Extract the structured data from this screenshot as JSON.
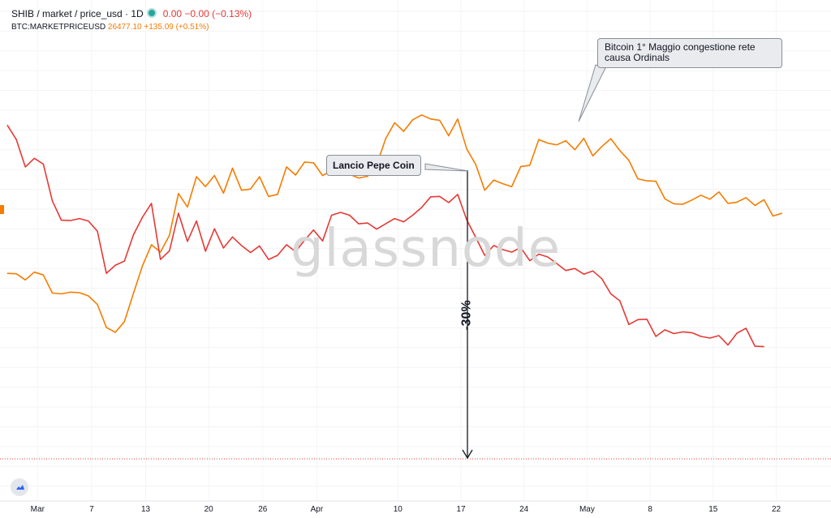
{
  "legend": {
    "symbol": "SHIB / market / price_usd · 1D",
    "symbol_values": "0.00 −0.00 (−0.13%)",
    "btc_symbol": "BTC:MARKETPRICEUSD",
    "btc_values": "26477.10 +135.09 (+0.51%)"
  },
  "annotations": {
    "pepe": "Lancio Pepe Coin",
    "btc": "Bitcoin 1° Maggio congestione rete causa Ordinals",
    "drop": "-30%"
  },
  "watermark": "glassnode",
  "colors": {
    "shib": "#e53935",
    "btc": "#f57c00",
    "axis_text": "#131722"
  },
  "icons": {
    "logo": "tradingview-cloud-icon"
  },
  "chart_data": {
    "type": "line",
    "x_tick_labels": [
      "Mar",
      "7",
      "13",
      "20",
      "26",
      "Apr",
      "10",
      "17",
      "24",
      "May",
      "8",
      "15",
      "22"
    ],
    "series": [
      {
        "name": "SHIB / market / price_usd",
        "values": [
          91.8,
          88.3,
          81.6,
          83.7,
          82.3,
          73.3,
          68.6,
          68.5,
          69.0,
          68.4,
          65.9,
          55.6,
          57.6,
          58.6,
          65.0,
          69.3,
          72.7,
          59.0,
          61.1,
          70.3,
          63.4,
          68.4,
          61.0,
          66.5,
          61.8,
          64.5,
          62.4,
          60.7,
          62.3,
          59.0,
          60.0,
          62.6,
          60.9,
          63.7,
          66.2,
          63.5,
          69.8,
          70.5,
          69.8,
          67.7,
          67.9,
          66.4,
          67.7,
          69.0,
          68.2,
          69.8,
          71.7,
          74.3,
          74.4,
          72.9,
          74.9,
          68.7,
          64.4,
          60.0,
          62.4,
          61.4,
          60.8,
          61.9,
          58.7,
          60.3,
          59.6,
          58.0,
          56.3,
          56.8,
          55.4,
          56.2,
          54.3,
          50.6,
          48.9,
          43.1,
          44.3,
          44.4,
          40.2,
          41.8,
          40.9,
          41.3,
          41.1,
          40.2,
          39.8,
          40.4,
          38.1,
          41.0,
          42.2,
          37.8,
          37.7
        ]
      },
      {
        "name": "BTC:MARKETPRICEUSD",
        "values": [
          55.6,
          55.5,
          54.0,
          55.9,
          55.2,
          50.8,
          50.6,
          51.0,
          50.9,
          50.1,
          48.0,
          42.4,
          41.2,
          43.8,
          50.7,
          57.4,
          62.6,
          60.8,
          64.9,
          75.1,
          71.8,
          79.2,
          76.8,
          79.5,
          75.2,
          81.3,
          75.9,
          76.2,
          79.2,
          74.4,
          74.9,
          81.6,
          79.6,
          82.8,
          82.6,
          79.5,
          80.7,
          80.7,
          79.8,
          78.9,
          79.3,
          82.0,
          88.5,
          92.4,
          90.3,
          93.1,
          94.3,
          93.3,
          93.0,
          89.2,
          93.3,
          86.0,
          82.2,
          75.9,
          78.4,
          77.5,
          76.8,
          81.7,
          82.0,
          88.3,
          87.4,
          87.0,
          88.0,
          85.8,
          88.6,
          84.3,
          86.6,
          88.5,
          85.6,
          83.2,
          78.7,
          78.2,
          78.1,
          73.8,
          72.6,
          72.5,
          73.5,
          74.7,
          73.7,
          75.5,
          72.7,
          73.0,
          74.1,
          72.2,
          73.6,
          69.6,
          70.3
        ]
      }
    ],
    "annotations": [
      "Lancio Pepe Coin",
      "Bitcoin 1° Maggio congestione rete causa Ordinals",
      "-30%"
    ]
  }
}
